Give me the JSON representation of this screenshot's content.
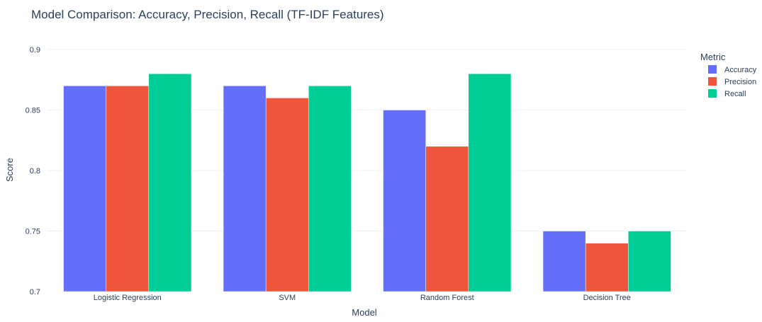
{
  "chart_data": {
    "type": "bar",
    "title": "Model Comparison: Accuracy, Precision, Recall (TF-IDF Features)",
    "xlabel": "Model",
    "ylabel": "Score",
    "ylim": [
      0.7,
      0.9
    ],
    "yticks": [
      "0.7",
      "0.75",
      "0.8",
      "0.85",
      "0.9"
    ],
    "grid": true,
    "legend_title": "Metric",
    "legend_position": "top-right",
    "categories": [
      "Logistic Regression",
      "SVM",
      "Random Forest",
      "Decision Tree"
    ],
    "series": [
      {
        "name": "Accuracy",
        "color": "#636efa",
        "values": [
          0.87,
          0.87,
          0.85,
          0.75
        ]
      },
      {
        "name": "Precision",
        "color": "#ef553b",
        "values": [
          0.87,
          0.86,
          0.82,
          0.74
        ]
      },
      {
        "name": "Recall",
        "color": "#00cc96",
        "values": [
          0.88,
          0.87,
          0.88,
          0.75
        ]
      }
    ]
  }
}
